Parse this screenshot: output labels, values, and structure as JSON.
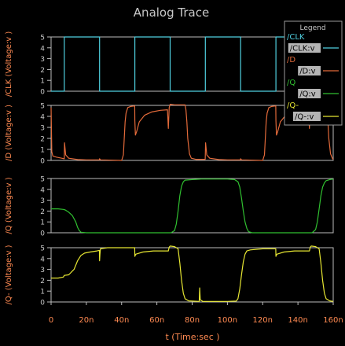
{
  "chart_data": {
    "type": "line",
    "title": "Analog Trace",
    "xlabel": "t (Time:sec )",
    "xlim": [
      0,
      160
    ],
    "xticks": [
      0,
      20,
      40,
      60,
      80,
      100,
      120,
      140,
      160
    ],
    "xtick_labels": [
      "0",
      "20n",
      "40n",
      "60n",
      "80n",
      "100n",
      "120n",
      "140n",
      "160n"
    ],
    "grid": false,
    "legend": {
      "title": "Legend",
      "placement": "top-right",
      "entries": [
        {
          "net": "/CLK",
          "label": "/CLK:v",
          "color": "#4fcfdf"
        },
        {
          "net": "/D",
          "label": "/D:v",
          "color": "#e36a3a"
        },
        {
          "net": "/Q",
          "label": "/Q:v",
          "color": "#30c030"
        },
        {
          "net": "/Q-",
          "label": "/Q-:v",
          "color": "#e6e632"
        }
      ]
    },
    "series": [
      {
        "name": "/CLK",
        "ylabel": "/CLK (Voltage:v )",
        "ylim": [
          0,
          5
        ],
        "yticks": [
          0,
          1,
          2,
          3,
          4,
          5
        ],
        "color": "#4fcfdf",
        "points": [
          [
            0,
            0
          ],
          [
            7.5,
            0
          ],
          [
            7.5,
            5
          ],
          [
            27.5,
            5
          ],
          [
            27.5,
            0
          ],
          [
            47.5,
            0
          ],
          [
            47.5,
            5
          ],
          [
            67.5,
            5
          ],
          [
            67.5,
            0
          ],
          [
            87.5,
            0
          ],
          [
            87.5,
            5
          ],
          [
            107.5,
            5
          ],
          [
            107.5,
            0
          ],
          [
            127.5,
            0
          ],
          [
            127.5,
            5
          ],
          [
            147.5,
            5
          ],
          [
            147.5,
            0
          ],
          [
            160,
            0
          ]
        ]
      },
      {
        "name": "/D",
        "ylabel": "/D (Voltage:v )",
        "ylim": [
          0,
          5
        ],
        "yticks": [
          0,
          1,
          2,
          3,
          4,
          5
        ],
        "color": "#e36a3a",
        "points": [
          [
            0,
            4.8
          ],
          [
            0.4,
            0.8
          ],
          [
            1,
            0.4
          ],
          [
            3,
            0.3
          ],
          [
            6,
            0.2
          ],
          [
            7.5,
            0.15
          ],
          [
            7.6,
            1.6
          ],
          [
            8.3,
            0.5
          ],
          [
            10,
            0.2
          ],
          [
            15,
            0.08
          ],
          [
            20,
            0.05
          ],
          [
            27.4,
            0.05
          ],
          [
            27.5,
            0.15
          ],
          [
            28,
            0.05
          ],
          [
            40,
            0
          ],
          [
            41,
            0.5
          ],
          [
            41.5,
            2.0
          ],
          [
            42,
            3.5
          ],
          [
            42.5,
            4.3
          ],
          [
            43.5,
            4.8
          ],
          [
            45,
            4.9
          ],
          [
            47.4,
            4.95
          ],
          [
            47.5,
            3.6
          ],
          [
            47.8,
            2.3
          ],
          [
            48.5,
            2.6
          ],
          [
            50,
            3.5
          ],
          [
            53,
            4.1
          ],
          [
            57,
            4.4
          ],
          [
            62,
            4.55
          ],
          [
            66,
            4.6
          ],
          [
            66.5,
            2.9
          ],
          [
            67,
            4.8
          ],
          [
            67.5,
            5.1
          ],
          [
            70,
            5.05
          ],
          [
            74,
            5.05
          ],
          [
            76,
            5.05
          ],
          [
            76.5,
            4.6
          ],
          [
            77,
            3.5
          ],
          [
            77.5,
            2.0
          ],
          [
            78.5,
            0.6
          ],
          [
            79.5,
            0.2
          ],
          [
            82,
            0.1
          ],
          [
            87.4,
            0.1
          ],
          [
            87.6,
            1.6
          ],
          [
            88.3,
            0.5
          ],
          [
            90,
            0.2
          ],
          [
            95,
            0.08
          ],
          [
            100,
            0.05
          ],
          [
            107.4,
            0.05
          ],
          [
            107.5,
            0.15
          ],
          [
            108,
            0.05
          ],
          [
            120,
            0
          ],
          [
            121,
            0.5
          ],
          [
            121.5,
            2.0
          ],
          [
            122,
            3.5
          ],
          [
            122.5,
            4.3
          ],
          [
            123.5,
            4.8
          ],
          [
            125,
            4.9
          ],
          [
            127.4,
            4.95
          ],
          [
            127.5,
            3.6
          ],
          [
            127.8,
            2.3
          ],
          [
            128.5,
            2.6
          ],
          [
            130,
            3.5
          ],
          [
            133,
            4.1
          ],
          [
            137,
            4.4
          ],
          [
            142,
            4.55
          ],
          [
            146,
            4.6
          ],
          [
            146.5,
            2.9
          ],
          [
            147,
            4.8
          ],
          [
            147.5,
            5.1
          ],
          [
            150,
            5.05
          ],
          [
            154,
            5.05
          ],
          [
            156,
            5.05
          ],
          [
            156.5,
            4.6
          ],
          [
            157,
            3.5
          ],
          [
            157.5,
            2.0
          ],
          [
            158.5,
            0.6
          ],
          [
            159.5,
            0.2
          ],
          [
            160,
            0.1
          ]
        ]
      },
      {
        "name": "/Q",
        "ylabel": "/Q (Voltage:v )",
        "ylim": [
          0,
          5
        ],
        "yticks": [
          0,
          1,
          2,
          3,
          4,
          5
        ],
        "color": "#30c030",
        "points": [
          [
            0,
            2.2
          ],
          [
            4,
            2.2
          ],
          [
            7,
            2.15
          ],
          [
            8,
            2.1
          ],
          [
            10,
            1.9
          ],
          [
            12,
            1.6
          ],
          [
            14,
            1.0
          ],
          [
            15,
            0.5
          ],
          [
            16,
            0.2
          ],
          [
            17,
            0.05
          ],
          [
            20,
            0
          ],
          [
            68,
            0
          ],
          [
            70,
            0.2
          ],
          [
            71,
            0.8
          ],
          [
            72,
            2.0
          ],
          [
            73,
            3.4
          ],
          [
            74,
            4.3
          ],
          [
            75,
            4.7
          ],
          [
            76,
            4.85
          ],
          [
            80,
            4.9
          ],
          [
            85,
            4.95
          ],
          [
            90,
            4.95
          ],
          [
            95,
            4.95
          ],
          [
            100,
            4.95
          ],
          [
            104,
            4.9
          ],
          [
            106,
            4.7
          ],
          [
            107,
            4.2
          ],
          [
            108,
            3.2
          ],
          [
            109,
            2.0
          ],
          [
            110,
            1.0
          ],
          [
            111,
            0.4
          ],
          [
            112,
            0.1
          ],
          [
            114,
            0
          ],
          [
            148,
            0
          ],
          [
            150,
            0.3
          ],
          [
            151,
            1.0
          ],
          [
            152,
            2.2
          ],
          [
            153,
            3.4
          ],
          [
            154,
            4.2
          ],
          [
            155,
            4.6
          ],
          [
            156,
            4.8
          ],
          [
            158,
            4.9
          ],
          [
            160,
            4.95
          ]
        ]
      },
      {
        "name": "/Q-",
        "ylabel": "/Q- (Voltage:v )",
        "ylim": [
          0,
          5
        ],
        "yticks": [
          0,
          1,
          2,
          3,
          4,
          5
        ],
        "color": "#e6e632",
        "points": [
          [
            0,
            2.2
          ],
          [
            4,
            2.2
          ],
          [
            7,
            2.3
          ],
          [
            7.5,
            2.45
          ],
          [
            10,
            2.5
          ],
          [
            13,
            3.0
          ],
          [
            15,
            3.8
          ],
          [
            17,
            4.3
          ],
          [
            19,
            4.5
          ],
          [
            22,
            4.6
          ],
          [
            26,
            4.7
          ],
          [
            27.4,
            4.75
          ],
          [
            27.5,
            3.8
          ],
          [
            27.7,
            4.4
          ],
          [
            28,
            4.9
          ],
          [
            32,
            5.0
          ],
          [
            40,
            5.0
          ],
          [
            46,
            5.0
          ],
          [
            47.4,
            5.0
          ],
          [
            47.5,
            4.2
          ],
          [
            48,
            4.4
          ],
          [
            52,
            4.6
          ],
          [
            58,
            4.7
          ],
          [
            64,
            4.7
          ],
          [
            66.5,
            4.7
          ],
          [
            67,
            5.05
          ],
          [
            67.5,
            5.15
          ],
          [
            70,
            5.1
          ],
          [
            72,
            4.9
          ],
          [
            73,
            3.6
          ],
          [
            74,
            2.0
          ],
          [
            75,
            0.8
          ],
          [
            76,
            0.3
          ],
          [
            78,
            0.1
          ],
          [
            84,
            0.05
          ],
          [
            84.3,
            1.3
          ],
          [
            84.6,
            0.2
          ],
          [
            86,
            0.05
          ],
          [
            94,
            0.05
          ],
          [
            100,
            0.05
          ],
          [
            105,
            0.08
          ],
          [
            106,
            0.3
          ],
          [
            107,
            1.2
          ],
          [
            108,
            2.5
          ],
          [
            109,
            3.7
          ],
          [
            110,
            4.4
          ],
          [
            111,
            4.7
          ],
          [
            113,
            4.8
          ],
          [
            116,
            4.85
          ],
          [
            120,
            4.9
          ],
          [
            126,
            4.9
          ],
          [
            127.4,
            4.9
          ],
          [
            127.5,
            4.2
          ],
          [
            128,
            4.4
          ],
          [
            132,
            4.6
          ],
          [
            138,
            4.7
          ],
          [
            144,
            4.7
          ],
          [
            146.5,
            4.7
          ],
          [
            147,
            5.05
          ],
          [
            147.5,
            5.15
          ],
          [
            150,
            5.1
          ],
          [
            152,
            4.9
          ],
          [
            153,
            3.6
          ],
          [
            154,
            2.0
          ],
          [
            155,
            0.8
          ],
          [
            156,
            0.3
          ],
          [
            158,
            0.1
          ],
          [
            160,
            0.05
          ]
        ]
      }
    ]
  }
}
